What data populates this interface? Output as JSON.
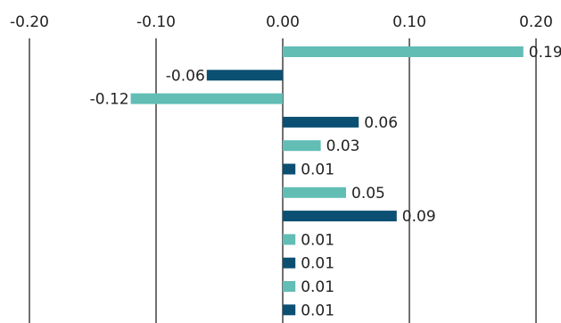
{
  "chart_data": {
    "type": "bar",
    "orientation": "horizontal",
    "xlim": [
      -0.2,
      0.2
    ],
    "x_ticks": [
      -0.2,
      -0.1,
      0.0,
      0.1,
      0.2
    ],
    "x_tick_labels": [
      "-0.20",
      "-0.10",
      "0.00",
      "0.10",
      "0.20"
    ],
    "x_axis_position": "top",
    "grid": "vertical",
    "legend": "none",
    "values": [
      0.19,
      -0.06,
      -0.12,
      0.06,
      0.03,
      0.01,
      0.05,
      0.09,
      0.01,
      0.01,
      0.01,
      0.01
    ],
    "value_labels": [
      "0.19",
      "-0.06",
      "-0.12",
      "0.06",
      "0.03",
      "0.01",
      "0.05",
      "0.09",
      "0.01",
      "0.01",
      "0.01",
      "0.01"
    ],
    "bar_colors": [
      "#62bdb5",
      "#0b4f73",
      "#62bdb5",
      "#0b4f73",
      "#62bdb5",
      "#0b4f73",
      "#62bdb5",
      "#0b4f73",
      "#62bdb5",
      "#0b4f73",
      "#62bdb5",
      "#0b4f73"
    ]
  },
  "colors": {
    "teal": "#62bdb5",
    "navy": "#0b4f73",
    "gridline": "#111111",
    "text": "#222222"
  }
}
